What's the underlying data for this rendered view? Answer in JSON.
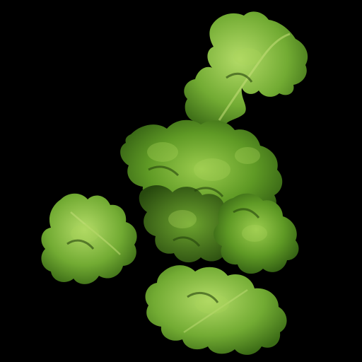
{
  "image": {
    "subject": "lettuce-leaves",
    "background_color": "#000000",
    "palette": {
      "deep_green": "#2f5a12",
      "mid_green": "#4f8a1f",
      "light_green": "#7fb33a",
      "highlight": "#a9d35a",
      "vein": "#c6e07a"
    }
  }
}
